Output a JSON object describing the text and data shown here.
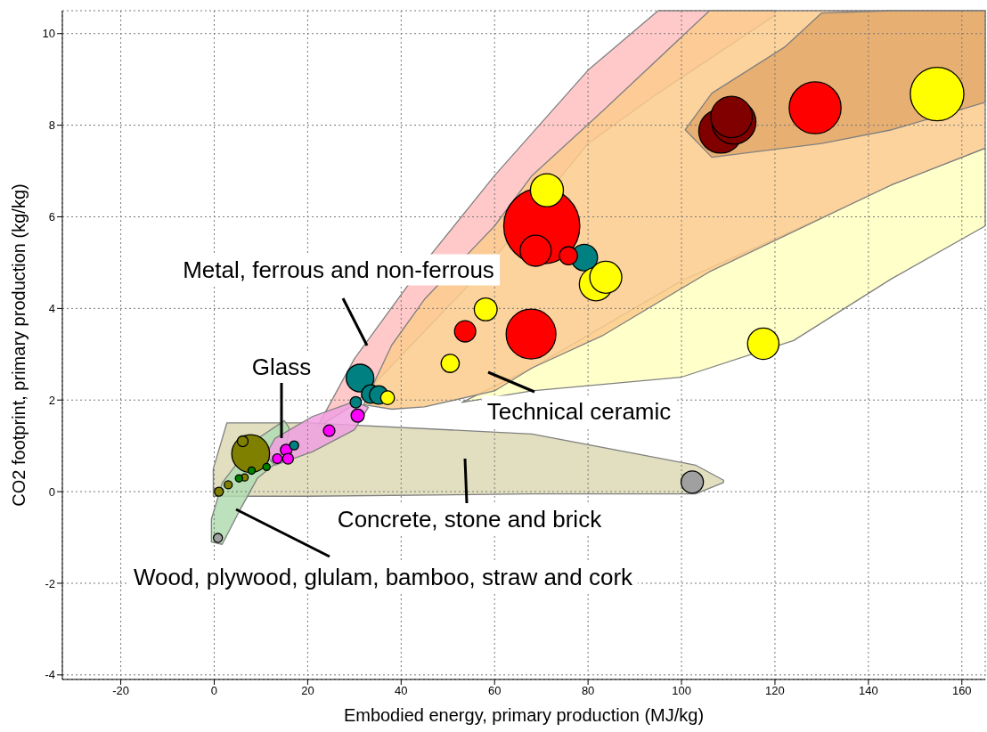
{
  "chart_data": {
    "type": "bubble",
    "xlabel": "Embodied energy, primary production (MJ/kg)",
    "ylabel": "CO2 footprint, primary production (kg/kg)",
    "xlim": [
      -32.5,
      165
    ],
    "xticks": [
      -20,
      0,
      20,
      40,
      60,
      80,
      100,
      120,
      140,
      160
    ],
    "ylim": [
      -4.1,
      10.5
    ],
    "yticks": [
      -4,
      -2,
      0,
      2,
      4,
      6,
      8,
      10
    ],
    "grid": true,
    "series": [
      {
        "color": "#a0a0a0",
        "x": [
          0.8,
          102.3
        ],
        "values": [
          -1.01,
          0.21
        ],
        "sizes": [
          0.014,
          0.086
        ]
      },
      {
        "color": "#808000",
        "x": [
          7.8,
          6.1,
          6.5,
          3.0,
          1.0
        ],
        "values": [
          0.83,
          1.1,
          0.31,
          0.15,
          0.0
        ],
        "sizes": [
          0.247,
          0.02,
          0.009,
          0.011,
          0.014
        ]
      },
      {
        "color": "#008000",
        "x": [
          8.0,
          11.2,
          5.3
        ],
        "values": [
          0.46,
          0.54,
          0.29
        ],
        "sizes": [
          0.009,
          0.009,
          0.009
        ]
      },
      {
        "color": "#ff00ff",
        "x": [
          30.7,
          24.6,
          15.4,
          13.5,
          15.8
        ],
        "values": [
          1.66,
          1.33,
          0.91,
          0.72,
          0.72
        ],
        "sizes": [
          0.03,
          0.023,
          0.023,
          0.016,
          0.02
        ]
      },
      {
        "color": "#008080",
        "x": [
          79.2,
          31.2,
          33.5,
          35.2,
          30.3,
          17.1
        ],
        "values": [
          5.11,
          2.48,
          2.13,
          2.11,
          1.95,
          1.01
        ],
        "sizes": [
          0.121,
          0.132,
          0.059,
          0.059,
          0.022,
          0.014
        ]
      },
      {
        "color": "#800000",
        "x": [
          108.4,
          111.2,
          110.7
        ],
        "values": [
          7.87,
          8.07,
          8.18
        ],
        "sizes": [
          0.334,
          0.338,
          0.296
        ]
      },
      {
        "color": "#ff0000",
        "x": [
          128.6,
          70.1,
          68.8,
          75.8,
          53.7,
          67.8
        ],
        "values": [
          8.38,
          5.8,
          5.26,
          5.15,
          3.5,
          3.44
        ],
        "sizes": [
          0.466,
          1,
          0.167,
          0.057,
          0.078,
          0.428
        ]
      },
      {
        "color": "#ffff00",
        "x": [
          154.7,
          117.5,
          71.2,
          81.7,
          83.8,
          58.1,
          50.5,
          37.1
        ],
        "values": [
          8.68,
          3.23,
          6.58,
          4.53,
          4.68,
          3.98,
          2.8,
          2.05
        ],
        "sizes": [
          0.495,
          0.17,
          0.188,
          0.192,
          0.177,
          0.09,
          0.057,
          0.033
        ]
      }
    ],
    "annotations": [
      "Metal, ferrous and non-ferrous",
      "Glass",
      "Technical ceramic",
      "Concrete, stone and brick",
      "Wood, plywood, glulam, bamboo, straw and cork"
    ]
  }
}
